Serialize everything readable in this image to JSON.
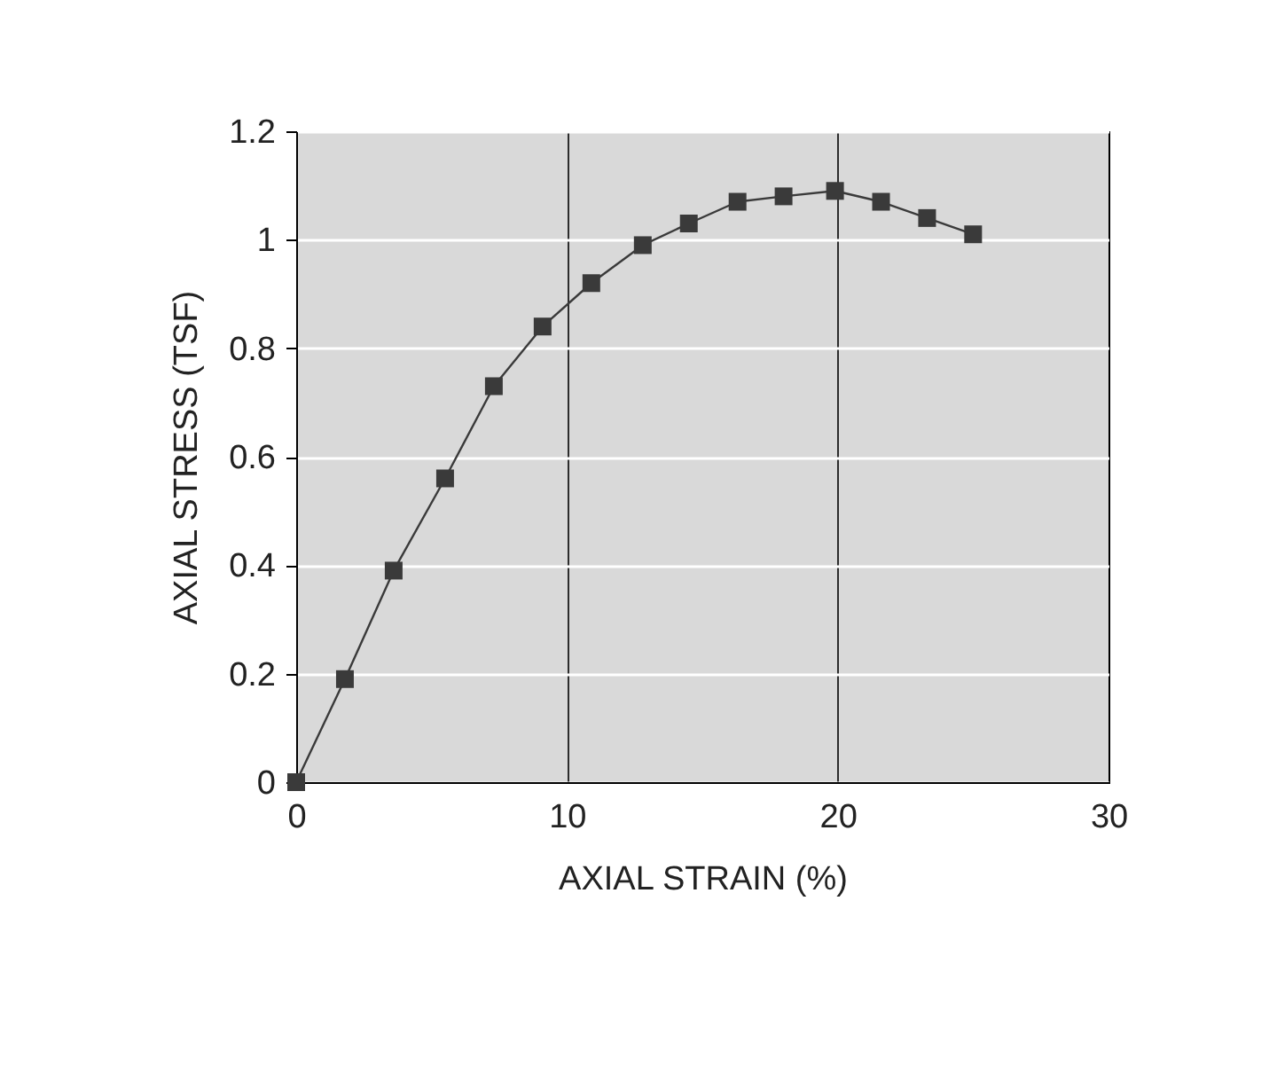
{
  "chart_data": {
    "type": "line",
    "xlabel": "AXIAL STRAIN (%)",
    "ylabel": "AXIAL STRESS (TSF)",
    "x": [
      0,
      1.8,
      3.6,
      5.5,
      7.3,
      9.1,
      10.9,
      12.8,
      14.5,
      16.3,
      18.0,
      19.9,
      21.6,
      23.3,
      25.0
    ],
    "series": [
      {
        "color": "#3a3a3a",
        "values": [
          0,
          0.19,
          0.39,
          0.56,
          0.73,
          0.84,
          0.92,
          0.99,
          1.03,
          1.07,
          1.08,
          1.09,
          1.07,
          1.04,
          1.01
        ]
      }
    ],
    "xlim": [
      0,
      30
    ],
    "xticks": [
      0,
      10,
      20,
      30
    ],
    "ylim": [
      0,
      1.2
    ],
    "yticks": [
      0,
      0.2,
      0.4,
      0.6,
      0.8,
      1,
      1.2
    ],
    "grid": true,
    "marker": "square",
    "line_style": "solid",
    "legend": false
  }
}
